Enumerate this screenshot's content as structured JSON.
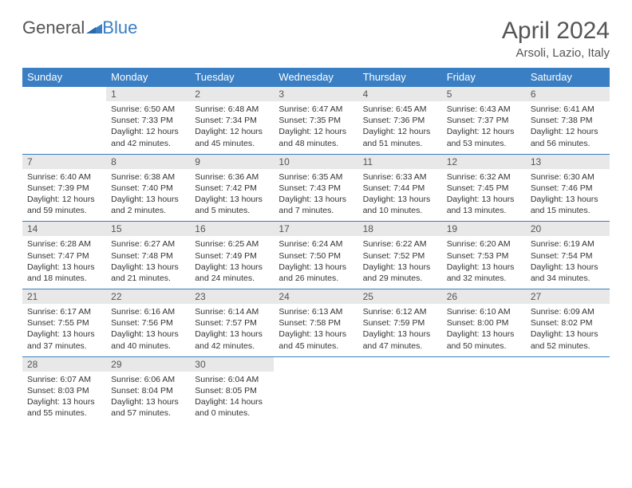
{
  "brand": {
    "part1": "General",
    "part2": "Blue"
  },
  "title": "April 2024",
  "location": "Arsoli, Lazio, Italy",
  "colors": {
    "header_bg": "#3a7fc4",
    "header_text": "#ffffff",
    "daynum_bg": "#e8e8e8",
    "border": "#3a7fc4",
    "text": "#333333",
    "title_text": "#555555"
  },
  "weekdays": [
    "Sunday",
    "Monday",
    "Tuesday",
    "Wednesday",
    "Thursday",
    "Friday",
    "Saturday"
  ],
  "weeks": [
    {
      "nums": [
        "",
        "1",
        "2",
        "3",
        "4",
        "5",
        "6"
      ],
      "cells": [
        {
          "empty": true
        },
        {
          "sunrise": "Sunrise: 6:50 AM",
          "sunset": "Sunset: 7:33 PM",
          "day1": "Daylight: 12 hours",
          "day2": "and 42 minutes."
        },
        {
          "sunrise": "Sunrise: 6:48 AM",
          "sunset": "Sunset: 7:34 PM",
          "day1": "Daylight: 12 hours",
          "day2": "and 45 minutes."
        },
        {
          "sunrise": "Sunrise: 6:47 AM",
          "sunset": "Sunset: 7:35 PM",
          "day1": "Daylight: 12 hours",
          "day2": "and 48 minutes."
        },
        {
          "sunrise": "Sunrise: 6:45 AM",
          "sunset": "Sunset: 7:36 PM",
          "day1": "Daylight: 12 hours",
          "day2": "and 51 minutes."
        },
        {
          "sunrise": "Sunrise: 6:43 AM",
          "sunset": "Sunset: 7:37 PM",
          "day1": "Daylight: 12 hours",
          "day2": "and 53 minutes."
        },
        {
          "sunrise": "Sunrise: 6:41 AM",
          "sunset": "Sunset: 7:38 PM",
          "day1": "Daylight: 12 hours",
          "day2": "and 56 minutes."
        }
      ]
    },
    {
      "nums": [
        "7",
        "8",
        "9",
        "10",
        "11",
        "12",
        "13"
      ],
      "cells": [
        {
          "sunrise": "Sunrise: 6:40 AM",
          "sunset": "Sunset: 7:39 PM",
          "day1": "Daylight: 12 hours",
          "day2": "and 59 minutes."
        },
        {
          "sunrise": "Sunrise: 6:38 AM",
          "sunset": "Sunset: 7:40 PM",
          "day1": "Daylight: 13 hours",
          "day2": "and 2 minutes."
        },
        {
          "sunrise": "Sunrise: 6:36 AM",
          "sunset": "Sunset: 7:42 PM",
          "day1": "Daylight: 13 hours",
          "day2": "and 5 minutes."
        },
        {
          "sunrise": "Sunrise: 6:35 AM",
          "sunset": "Sunset: 7:43 PM",
          "day1": "Daylight: 13 hours",
          "day2": "and 7 minutes."
        },
        {
          "sunrise": "Sunrise: 6:33 AM",
          "sunset": "Sunset: 7:44 PM",
          "day1": "Daylight: 13 hours",
          "day2": "and 10 minutes."
        },
        {
          "sunrise": "Sunrise: 6:32 AM",
          "sunset": "Sunset: 7:45 PM",
          "day1": "Daylight: 13 hours",
          "day2": "and 13 minutes."
        },
        {
          "sunrise": "Sunrise: 6:30 AM",
          "sunset": "Sunset: 7:46 PM",
          "day1": "Daylight: 13 hours",
          "day2": "and 15 minutes."
        }
      ]
    },
    {
      "nums": [
        "14",
        "15",
        "16",
        "17",
        "18",
        "19",
        "20"
      ],
      "cells": [
        {
          "sunrise": "Sunrise: 6:28 AM",
          "sunset": "Sunset: 7:47 PM",
          "day1": "Daylight: 13 hours",
          "day2": "and 18 minutes."
        },
        {
          "sunrise": "Sunrise: 6:27 AM",
          "sunset": "Sunset: 7:48 PM",
          "day1": "Daylight: 13 hours",
          "day2": "and 21 minutes."
        },
        {
          "sunrise": "Sunrise: 6:25 AM",
          "sunset": "Sunset: 7:49 PM",
          "day1": "Daylight: 13 hours",
          "day2": "and 24 minutes."
        },
        {
          "sunrise": "Sunrise: 6:24 AM",
          "sunset": "Sunset: 7:50 PM",
          "day1": "Daylight: 13 hours",
          "day2": "and 26 minutes."
        },
        {
          "sunrise": "Sunrise: 6:22 AM",
          "sunset": "Sunset: 7:52 PM",
          "day1": "Daylight: 13 hours",
          "day2": "and 29 minutes."
        },
        {
          "sunrise": "Sunrise: 6:20 AM",
          "sunset": "Sunset: 7:53 PM",
          "day1": "Daylight: 13 hours",
          "day2": "and 32 minutes."
        },
        {
          "sunrise": "Sunrise: 6:19 AM",
          "sunset": "Sunset: 7:54 PM",
          "day1": "Daylight: 13 hours",
          "day2": "and 34 minutes."
        }
      ]
    },
    {
      "nums": [
        "21",
        "22",
        "23",
        "24",
        "25",
        "26",
        "27"
      ],
      "cells": [
        {
          "sunrise": "Sunrise: 6:17 AM",
          "sunset": "Sunset: 7:55 PM",
          "day1": "Daylight: 13 hours",
          "day2": "and 37 minutes."
        },
        {
          "sunrise": "Sunrise: 6:16 AM",
          "sunset": "Sunset: 7:56 PM",
          "day1": "Daylight: 13 hours",
          "day2": "and 40 minutes."
        },
        {
          "sunrise": "Sunrise: 6:14 AM",
          "sunset": "Sunset: 7:57 PM",
          "day1": "Daylight: 13 hours",
          "day2": "and 42 minutes."
        },
        {
          "sunrise": "Sunrise: 6:13 AM",
          "sunset": "Sunset: 7:58 PM",
          "day1": "Daylight: 13 hours",
          "day2": "and 45 minutes."
        },
        {
          "sunrise": "Sunrise: 6:12 AM",
          "sunset": "Sunset: 7:59 PM",
          "day1": "Daylight: 13 hours",
          "day2": "and 47 minutes."
        },
        {
          "sunrise": "Sunrise: 6:10 AM",
          "sunset": "Sunset: 8:00 PM",
          "day1": "Daylight: 13 hours",
          "day2": "and 50 minutes."
        },
        {
          "sunrise": "Sunrise: 6:09 AM",
          "sunset": "Sunset: 8:02 PM",
          "day1": "Daylight: 13 hours",
          "day2": "and 52 minutes."
        }
      ]
    },
    {
      "nums": [
        "28",
        "29",
        "30",
        "",
        "",
        "",
        ""
      ],
      "cells": [
        {
          "sunrise": "Sunrise: 6:07 AM",
          "sunset": "Sunset: 8:03 PM",
          "day1": "Daylight: 13 hours",
          "day2": "and 55 minutes."
        },
        {
          "sunrise": "Sunrise: 6:06 AM",
          "sunset": "Sunset: 8:04 PM",
          "day1": "Daylight: 13 hours",
          "day2": "and 57 minutes."
        },
        {
          "sunrise": "Sunrise: 6:04 AM",
          "sunset": "Sunset: 8:05 PM",
          "day1": "Daylight: 14 hours",
          "day2": "and 0 minutes."
        },
        {
          "empty": true
        },
        {
          "empty": true
        },
        {
          "empty": true
        },
        {
          "empty": true
        }
      ]
    }
  ]
}
